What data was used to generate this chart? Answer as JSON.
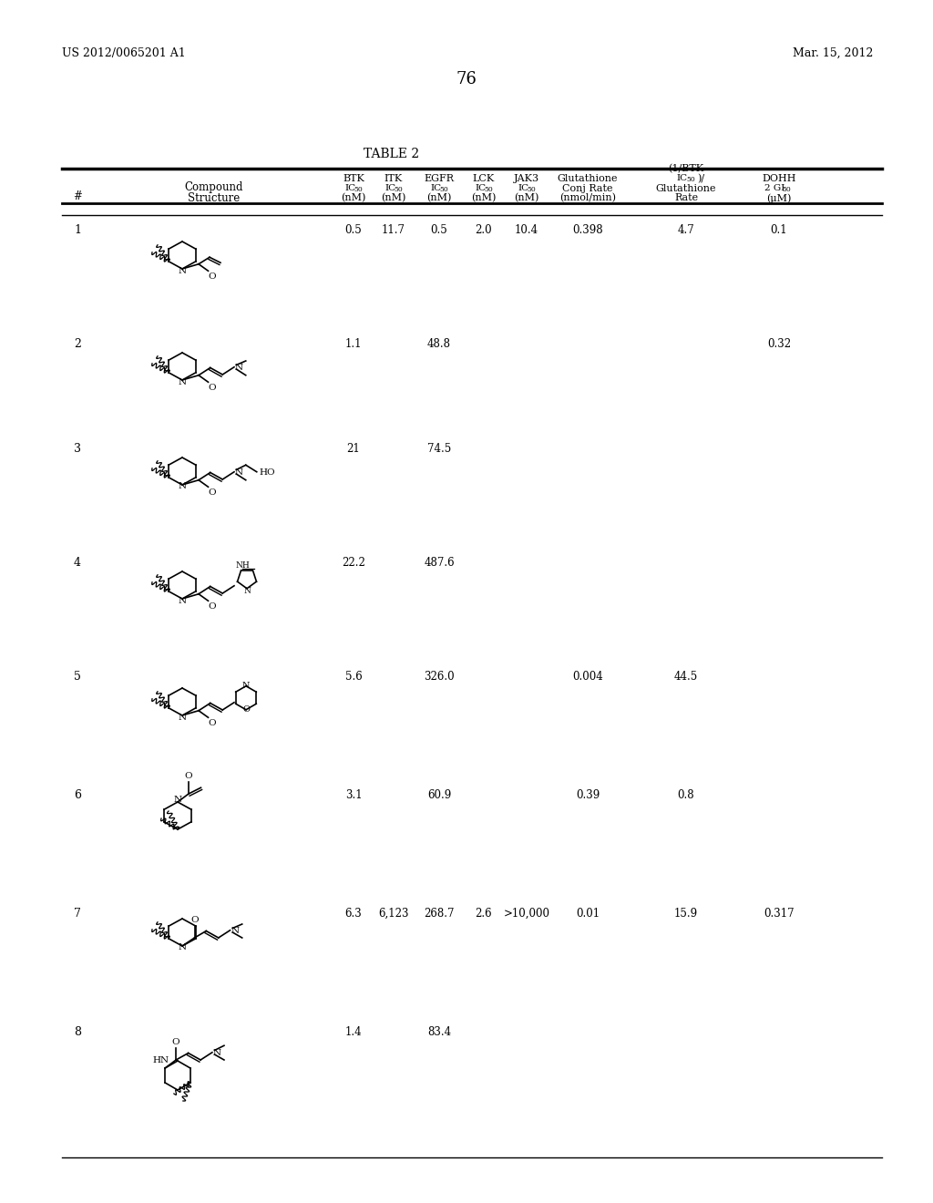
{
  "page_left": "US 2012/0065201 A1",
  "page_right": "Mar. 15, 2012",
  "page_number": "76",
  "table_title": "TABLE 2",
  "rows": [
    {
      "num": "1",
      "btk": "0.5",
      "itk": "11.7",
      "egfr": "0.5",
      "lck": "2.0",
      "jak3": "10.4",
      "glut": "0.398",
      "ratio": "4.7",
      "dohh": "0.1"
    },
    {
      "num": "2",
      "btk": "1.1",
      "itk": "",
      "egfr": "48.8",
      "lck": "",
      "jak3": "",
      "glut": "",
      "ratio": "",
      "dohh": "0.32"
    },
    {
      "num": "3",
      "btk": "21",
      "itk": "",
      "egfr": "74.5",
      "lck": "",
      "jak3": "",
      "glut": "",
      "ratio": "",
      "dohh": ""
    },
    {
      "num": "4",
      "btk": "22.2",
      "itk": "",
      "egfr": "487.6",
      "lck": "",
      "jak3": "",
      "glut": "",
      "ratio": "",
      "dohh": ""
    },
    {
      "num": "5",
      "btk": "5.6",
      "itk": "",
      "egfr": "326.0",
      "lck": "",
      "jak3": "",
      "glut": "0.004",
      "ratio": "44.5",
      "dohh": ""
    },
    {
      "num": "6",
      "btk": "3.1",
      "itk": "",
      "egfr": "60.9",
      "lck": "",
      "jak3": "",
      "glut": "0.39",
      "ratio": "0.8",
      "dohh": ""
    },
    {
      "num": "7",
      "btk": "6.3",
      "itk": "6,123",
      "egfr": "268.7",
      "lck": "2.6",
      "jak3": ">10,000",
      "glut": "0.01",
      "ratio": "15.9",
      "dohh": "0.317"
    },
    {
      "num": "8",
      "btk": "1.4",
      "itk": "",
      "egfr": "83.4",
      "lck": "",
      "jak3": "",
      "glut": "",
      "ratio": "",
      "dohh": ""
    }
  ],
  "bg_color": "#ffffff",
  "text_color": "#000000"
}
